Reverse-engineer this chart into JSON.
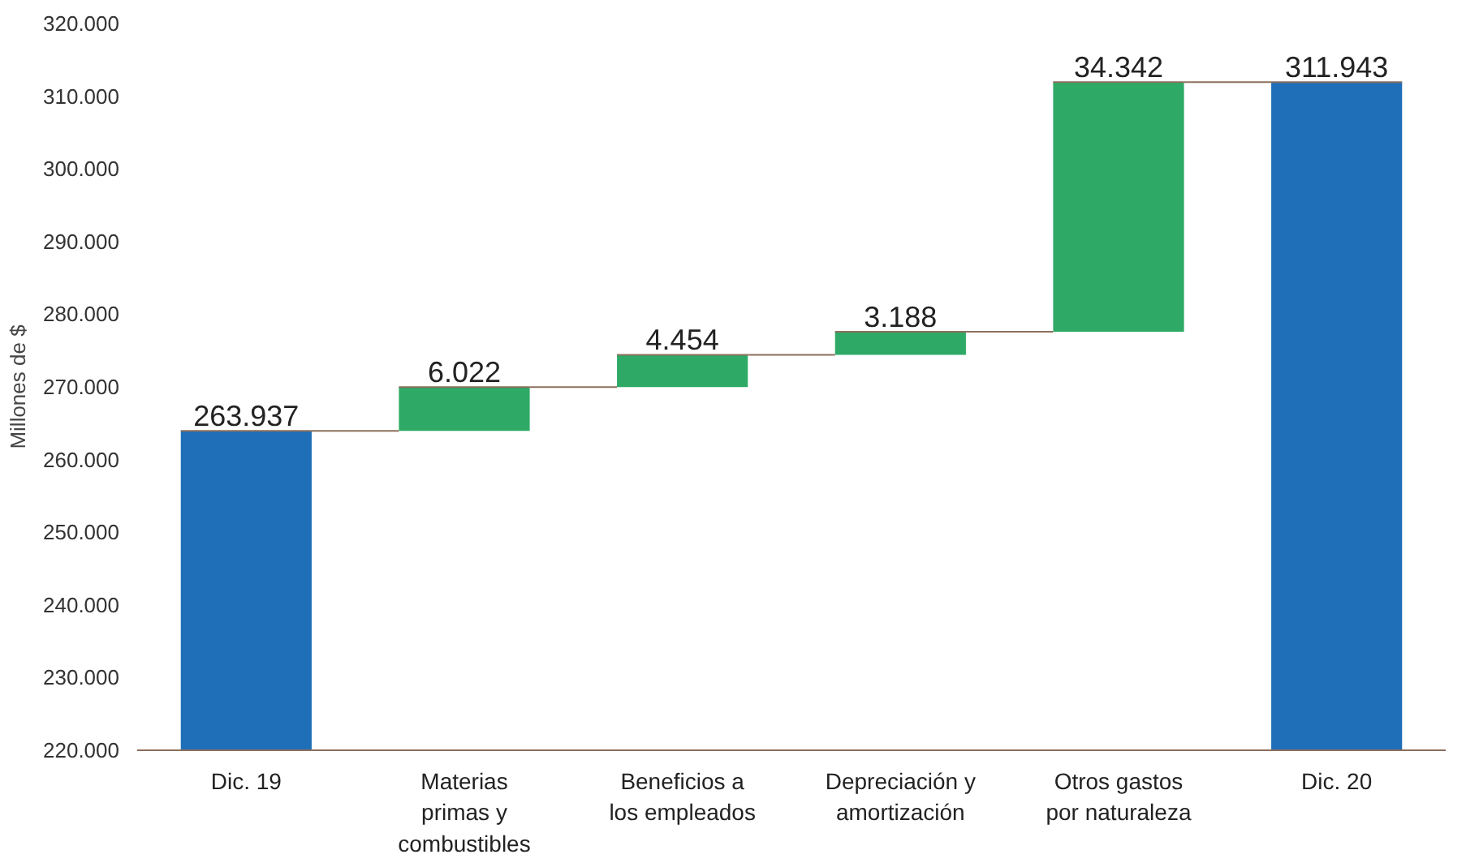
{
  "chart_data": {
    "type": "bar",
    "ylabel": "Millones de $",
    "categories": [
      "Dic. 19",
      "Materias\nprimas y\ncombustibles",
      "Beneficios a\nlos empleados",
      "Depreciación y\namortización",
      "Otros gastos\npor naturaleza",
      "Dic. 20"
    ],
    "values": [
      263937,
      6022,
      4454,
      3188,
      34342,
      311943
    ],
    "base": [
      0,
      263937,
      269959,
      274413,
      277601,
      0
    ],
    "colors": [
      "#1f6fb8",
      "#2eaa66",
      "#2eaa66",
      "#2eaa66",
      "#2eaa66",
      "#1f6fb8"
    ],
    "value_labels": [
      "263.937",
      "6.022",
      "4.454",
      "3.188",
      "34.342",
      "311.943"
    ],
    "ylim": [
      220000,
      320000
    ],
    "yticks": [
      {
        "value": 220000,
        "label": "220.000"
      },
      {
        "value": 230000,
        "label": "230.000"
      },
      {
        "value": 240000,
        "label": "240.000"
      },
      {
        "value": 250000,
        "label": "250.000"
      },
      {
        "value": 260000,
        "label": "260.000"
      },
      {
        "value": 270000,
        "label": "270.000"
      },
      {
        "value": 280000,
        "label": "280.000"
      },
      {
        "value": 290000,
        "label": "290.000"
      },
      {
        "value": 300000,
        "label": "300.000"
      },
      {
        "value": 310000,
        "label": "310.000"
      },
      {
        "value": 320000,
        "label": "320.000"
      }
    ],
    "grid": false
  }
}
